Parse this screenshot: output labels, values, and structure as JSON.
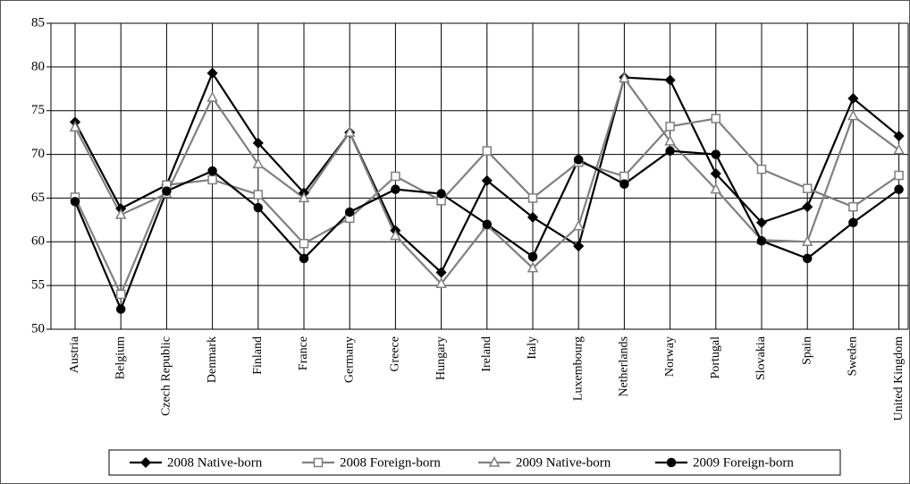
{
  "chart_data": {
    "type": "line",
    "categories": [
      "Austria",
      "Belgium",
      "Czech Republic",
      "Denmark",
      "Finland",
      "France",
      "Germany",
      "Greece",
      "Hungary",
      "Ireland",
      "Italy",
      "Luxembourg",
      "Netherlands",
      "Norway",
      "Portugal",
      "Slovakia",
      "Spain",
      "Sweden",
      "United Kingdom"
    ],
    "series": [
      {
        "name": "2008 Native-born",
        "color": "#000000",
        "marker": "diamond",
        "values": [
          73.7,
          63.8,
          66.5,
          79.3,
          71.3,
          65.6,
          72.5,
          61.3,
          56.5,
          67.0,
          62.8,
          59.5,
          78.8,
          78.5,
          67.8,
          62.2,
          64.0,
          76.4,
          72.1
        ]
      },
      {
        "name": "2008 Foreign-born",
        "color": "#808080",
        "marker": "square",
        "values": [
          65.1,
          54.0,
          66.5,
          67.1,
          65.4,
          59.8,
          62.7,
          67.5,
          64.7,
          70.4,
          65.0,
          69.1,
          67.5,
          73.2,
          74.1,
          68.3,
          66.1,
          64.0,
          67.6
        ]
      },
      {
        "name": "2009 Native-born",
        "color": "#808080",
        "marker": "triangle",
        "values": [
          73.1,
          63.1,
          65.5,
          76.5,
          68.9,
          65.0,
          72.5,
          60.7,
          55.2,
          61.9,
          57.0,
          61.8,
          78.7,
          71.5,
          66.0,
          60.2,
          60.0,
          74.4,
          70.5
        ]
      },
      {
        "name": "2009 Foreign-born",
        "color": "#000000",
        "marker": "circle",
        "values": [
          64.6,
          52.3,
          65.8,
          68.1,
          63.9,
          58.1,
          63.4,
          66.0,
          65.5,
          62.0,
          58.3,
          69.4,
          66.6,
          70.4,
          70.0,
          60.1,
          58.1,
          62.2,
          66.0
        ]
      }
    ],
    "ylim": [
      50,
      85
    ],
    "yticks": [
      50,
      55,
      60,
      65,
      70,
      75,
      80,
      85
    ],
    "grid": true,
    "legend": "bottom"
  }
}
